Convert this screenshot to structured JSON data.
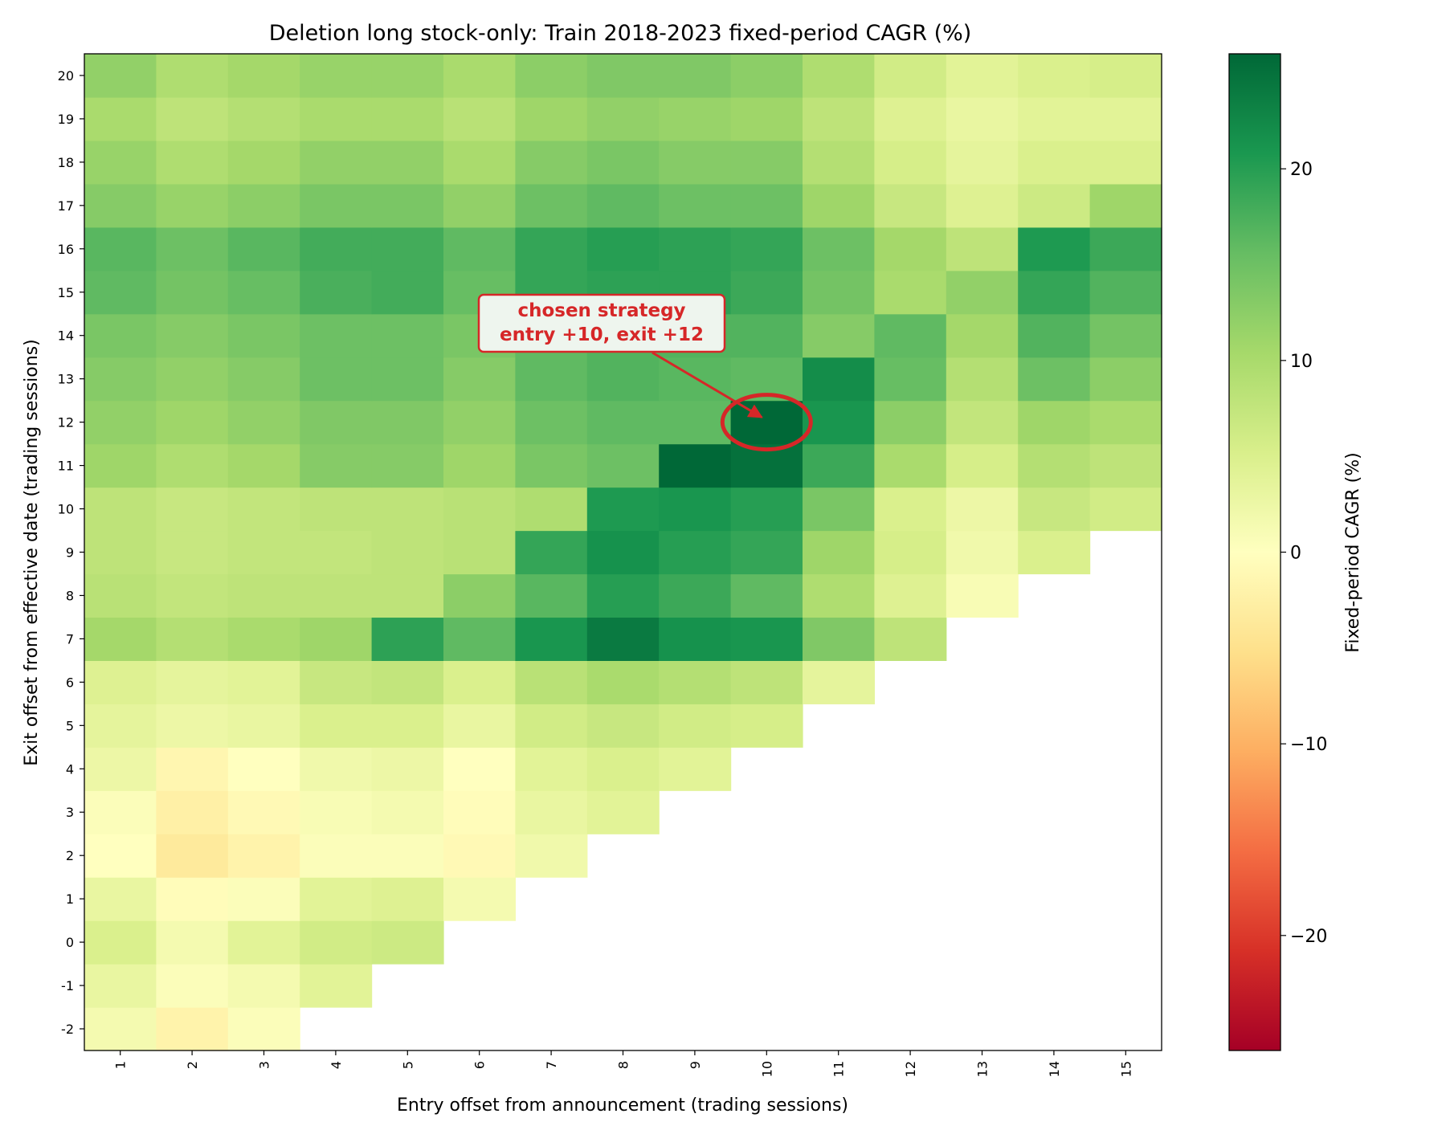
{
  "chart_data": {
    "type": "heatmap",
    "title": "Deletion long stock-only: Train 2018-2023 fixed-period CAGR (%)",
    "xlabel": "Entry offset from announcement (trading sessions)",
    "ylabel": "Exit offset from effective date (trading sessions)",
    "colorbar_label": "Fixed-period CAGR (%)",
    "colormap": "RdYlGn",
    "vmin": -26,
    "vmax": 26,
    "colorbar_ticks": [
      20,
      10,
      0,
      -10,
      -20
    ],
    "colorbar_tick_labels": [
      "20",
      "10",
      "0",
      "−10",
      "−20"
    ],
    "x": [
      1,
      2,
      3,
      4,
      5,
      6,
      7,
      8,
      9,
      10,
      11,
      12,
      13,
      14,
      15
    ],
    "x_tick_labels": [
      "1",
      "2",
      "3",
      "4",
      "5",
      "6",
      "7",
      "8",
      "9",
      "10",
      "11",
      "12",
      "13",
      "14",
      "15"
    ],
    "y": [
      -2,
      -1,
      0,
      1,
      2,
      3,
      4,
      5,
      6,
      7,
      8,
      9,
      10,
      11,
      12,
      13,
      14,
      15,
      16,
      17,
      18,
      19,
      20
    ],
    "y_tick_labels": [
      "-2",
      "-1",
      "0",
      "1",
      "2",
      "3",
      "4",
      "5",
      "6",
      "7",
      "8",
      "9",
      "10",
      "11",
      "12",
      "13",
      "14",
      "15",
      "16",
      "17",
      "18",
      "19",
      "20"
    ],
    "values": [
      [
        1.5,
        -2.0,
        0.5,
        null,
        null,
        null,
        null,
        null,
        null,
        null,
        null,
        null,
        null,
        null,
        null
      ],
      [
        3.0,
        0.5,
        1.5,
        4.0,
        null,
        null,
        null,
        null,
        null,
        null,
        null,
        null,
        null,
        null,
        null
      ],
      [
        5.0,
        1.5,
        4.0,
        6.0,
        6.5,
        null,
        null,
        null,
        null,
        null,
        null,
        null,
        null,
        null,
        null
      ],
      [
        3.0,
        -0.5,
        0.5,
        4.0,
        4.5,
        1.5,
        null,
        null,
        null,
        null,
        null,
        null,
        null,
        null,
        null
      ],
      [
        0.0,
        -3.5,
        -2.0,
        0.5,
        0.5,
        -1.0,
        2.0,
        null,
        null,
        null,
        null,
        null,
        null,
        null,
        null
      ],
      [
        0.5,
        -2.5,
        -1.0,
        1.0,
        1.5,
        -0.5,
        3.0,
        4.0,
        null,
        null,
        null,
        null,
        null,
        null,
        null
      ],
      [
        2.5,
        -1.5,
        0.0,
        2.0,
        2.5,
        0.0,
        4.0,
        5.0,
        4.0,
        null,
        null,
        null,
        null,
        null,
        null
      ],
      [
        3.5,
        2.5,
        3.0,
        5.0,
        5.0,
        3.0,
        6.0,
        7.0,
        6.0,
        5.5,
        null,
        null,
        null,
        null,
        null
      ],
      [
        4.5,
        3.5,
        4.0,
        7.0,
        7.5,
        5.0,
        8.5,
        10.0,
        9.0,
        8.0,
        3.5,
        null,
        null,
        null,
        null
      ],
      [
        10.5,
        9.0,
        10.0,
        11.0,
        19.5,
        16.0,
        21.0,
        24.0,
        21.5,
        21.0,
        13.5,
        8.0,
        null,
        null,
        null
      ],
      [
        8.5,
        7.5,
        8.0,
        8.0,
        8.0,
        12.5,
        16.5,
        20.0,
        18.5,
        16.0,
        9.5,
        4.5,
        1.0,
        null,
        null
      ],
      [
        8.0,
        7.0,
        7.5,
        7.5,
        8.0,
        8.5,
        19.0,
        21.5,
        20.0,
        19.0,
        11.0,
        5.5,
        2.0,
        5.0,
        null
      ],
      [
        8.0,
        7.0,
        7.5,
        8.0,
        8.0,
        8.5,
        9.5,
        20.5,
        21.0,
        20.0,
        14.0,
        5.0,
        2.5,
        7.0,
        6.0
      ],
      [
        11.0,
        9.5,
        10.5,
        13.0,
        13.0,
        11.0,
        14.0,
        15.0,
        26.0,
        25.0,
        18.5,
        10.0,
        5.5,
        9.0,
        8.0
      ],
      [
        12.0,
        11.0,
        12.0,
        13.5,
        13.5,
        12.0,
        15.0,
        16.0,
        16.0,
        26.5,
        21.0,
        12.5,
        7.5,
        11.0,
        10.0
      ],
      [
        13.0,
        12.0,
        13.0,
        15.0,
        15.0,
        13.0,
        16.0,
        17.0,
        16.5,
        16.0,
        22.0,
        15.5,
        9.0,
        15.0,
        12.5
      ],
      [
        14.0,
        13.0,
        14.0,
        15.0,
        15.0,
        14.0,
        16.0,
        17.0,
        17.0,
        17.0,
        13.0,
        16.0,
        10.5,
        17.0,
        14.5
      ],
      [
        16.0,
        14.5,
        15.5,
        17.5,
        18.0,
        15.5,
        19.0,
        19.5,
        19.5,
        18.5,
        14.5,
        10.0,
        12.0,
        19.0,
        17.0
      ],
      [
        16.5,
        15.0,
        16.5,
        18.0,
        18.0,
        16.0,
        19.0,
        20.0,
        19.5,
        19.0,
        15.0,
        10.5,
        8.0,
        20.5,
        18.5
      ],
      [
        13.0,
        11.5,
        12.5,
        14.0,
        14.0,
        12.0,
        15.0,
        16.0,
        15.0,
        15.0,
        11.0,
        7.0,
        4.5,
        6.5,
        11.0
      ],
      [
        11.5,
        9.5,
        10.5,
        12.0,
        12.0,
        10.0,
        13.0,
        14.0,
        13.0,
        13.0,
        9.0,
        5.5,
        3.5,
        5.0,
        5.0
      ],
      [
        10.0,
        8.0,
        9.0,
        10.0,
        10.0,
        8.5,
        11.0,
        12.0,
        11.5,
        11.0,
        8.0,
        4.5,
        3.0,
        4.0,
        4.0
      ],
      [
        12.0,
        9.5,
        10.5,
        11.5,
        11.5,
        10.0,
        12.5,
        13.5,
        13.5,
        12.5,
        9.5,
        6.0,
        4.0,
        5.0,
        5.5
      ]
    ],
    "annotation": {
      "line1": "chosen strategy",
      "line2": "entry +10, exit +12",
      "target_x": 10,
      "target_y": 12,
      "color": "#d62728"
    },
    "grid": false
  }
}
